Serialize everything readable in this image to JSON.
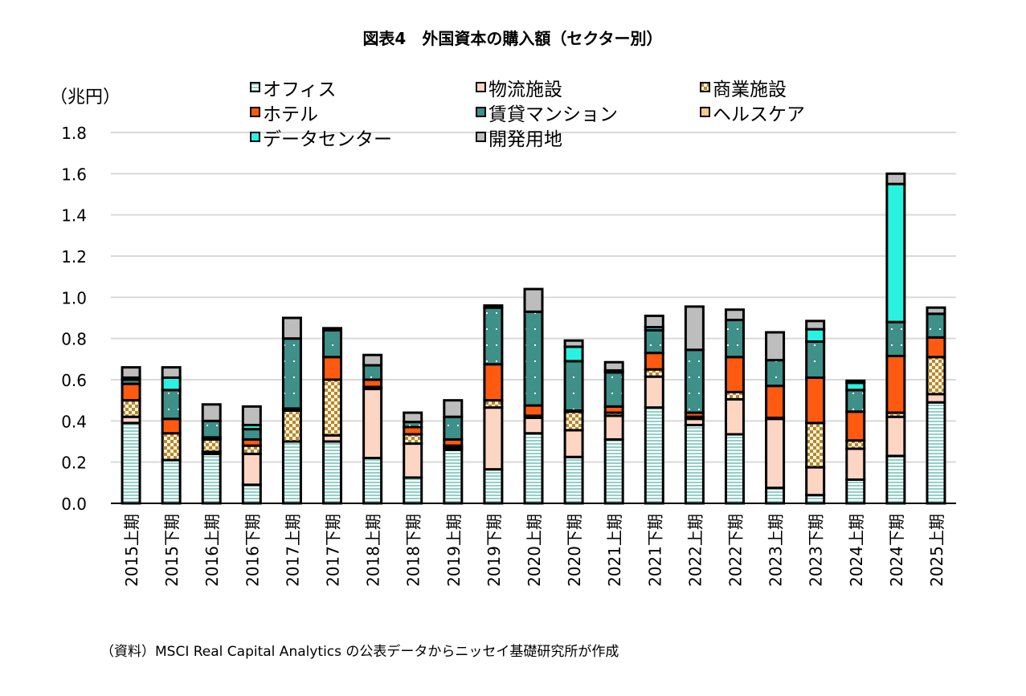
{
  "chart_data": {
    "type": "bar",
    "stacked": true,
    "title": "図表4　外国資本の購入額（セクター別）",
    "ylabel": "（兆円）",
    "ylim": [
      0,
      1.8
    ],
    "yticks": [
      "0.0",
      "0.2",
      "0.4",
      "0.6",
      "0.8",
      "1.0",
      "1.2",
      "1.4",
      "1.6",
      "1.8"
    ],
    "grid": true,
    "legend_position": "top",
    "categories": [
      "2015上期",
      "2015下期",
      "2016上期",
      "2016下期",
      "2017上期",
      "2017下期",
      "2018上期",
      "2018下期",
      "2019上期",
      "2019下期",
      "2020上期",
      "2020下期",
      "2021上期",
      "2021下期",
      "2022上期",
      "2022下期",
      "2023上期",
      "2023下期",
      "2024上期",
      "2024下期",
      "2025上期"
    ],
    "series": [
      {
        "name": "オフィス",
        "color": "#9fd8d0",
        "pattern": "hstripe",
        "values": [
          0.39,
          0.21,
          0.24,
          0.09,
          0.3,
          0.3,
          0.22,
          0.125,
          0.26,
          0.165,
          0.34,
          0.225,
          0.31,
          0.465,
          0.38,
          0.335,
          0.075,
          0.04,
          0.115,
          0.23,
          0.49
        ]
      },
      {
        "name": "物流施設",
        "color": "#fdd5c3",
        "pattern": "solid",
        "values": [
          0.03,
          0,
          0.01,
          0.15,
          0,
          0.03,
          0.335,
          0.165,
          0.01,
          0.3,
          0.075,
          0.13,
          0.115,
          0.15,
          0.03,
          0.17,
          0.335,
          0.135,
          0.15,
          0.19,
          0.04
        ]
      },
      {
        "name": "商業施設",
        "color": "#b8862b",
        "pattern": "checker",
        "values": [
          0.08,
          0.13,
          0.06,
          0.04,
          0.15,
          0.27,
          0.01,
          0.045,
          0.01,
          0.035,
          0.01,
          0.09,
          0.015,
          0.035,
          0.01,
          0.035,
          0.005,
          0.215,
          0.04,
          0.02,
          0.18
        ]
      },
      {
        "name": "ホテル",
        "color": "#ff5a0f",
        "pattern": "solid",
        "values": [
          0.08,
          0.07,
          0.01,
          0.03,
          0.01,
          0.11,
          0.035,
          0.035,
          0.03,
          0.175,
          0.05,
          0.005,
          0.03,
          0.08,
          0.02,
          0.17,
          0.155,
          0.22,
          0.14,
          0.275,
          0.095
        ]
      },
      {
        "name": "賃貸マンション",
        "color": "#3f9088",
        "pattern": "dots",
        "values": [
          0.02,
          0.14,
          0.08,
          0.05,
          0.34,
          0.13,
          0.07,
          0.025,
          0.11,
          0.275,
          0.455,
          0.24,
          0.165,
          0.11,
          0.305,
          0.18,
          0.125,
          0.175,
          0.105,
          0.165,
          0.115
        ]
      },
      {
        "name": "ヘルスケア",
        "color": "#f6c98e",
        "pattern": "solid",
        "values": [
          0,
          0,
          0,
          0,
          0,
          0,
          0,
          0,
          0,
          0,
          0,
          0,
          0,
          0,
          0,
          0,
          0,
          0,
          0,
          0,
          0
        ]
      },
      {
        "name": "データセンター",
        "color": "#29f2e0",
        "pattern": "solid",
        "values": [
          0.01,
          0.06,
          0,
          0.02,
          0,
          0,
          0,
          0,
          0,
          0,
          0,
          0.07,
          0.01,
          0.015,
          0,
          0,
          0,
          0.06,
          0.035,
          0.67,
          0
        ]
      },
      {
        "name": "開発用地",
        "color": "#bdbdbd",
        "pattern": "solid",
        "values": [
          0.05,
          0.05,
          0.08,
          0.09,
          0.1,
          0.01,
          0.05,
          0.045,
          0.08,
          0.01,
          0.11,
          0.03,
          0.04,
          0.055,
          0.21,
          0.05,
          0.135,
          0.04,
          0.01,
          0.05,
          0.03
        ]
      }
    ]
  },
  "source": "（資料）MSCI Real Capital Analytics の公表データからニッセイ基礎研究所が作成"
}
